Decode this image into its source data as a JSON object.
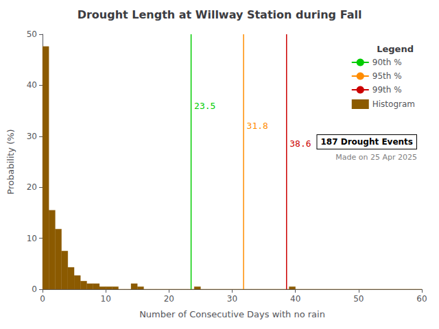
{
  "chart_data": {
    "type": "histogram",
    "title": "Drought Length at Willway Station during Fall",
    "x_label": "Number of Consecutive Days with no rain",
    "y_label": "Probability (%)",
    "bins": [
      0,
      1,
      2,
      3,
      4,
      5,
      6,
      7,
      8,
      9,
      10,
      11,
      12,
      13,
      14,
      15,
      16,
      17,
      18,
      19,
      20,
      21,
      22,
      23,
      24,
      25,
      26,
      27,
      28,
      29,
      30,
      31,
      32,
      33,
      34,
      35,
      36,
      37,
      38,
      39,
      40,
      41,
      42,
      43,
      44,
      45,
      46,
      47,
      48,
      49,
      50,
      51,
      52,
      53,
      54,
      55,
      56,
      57,
      58,
      59,
      60
    ],
    "values": [
      47.6,
      15.5,
      11.8,
      7.5,
      4.3,
      2.7,
      1.6,
      1.1,
      1.1,
      0.5,
      0.5,
      0.5,
      0.0,
      0.0,
      1.1,
      0.5,
      0.0,
      0.0,
      0.0,
      0.0,
      0.0,
      0.0,
      0.0,
      0.0,
      0.5,
      0.0,
      0.0,
      0.0,
      0.0,
      0.0,
      0.0,
      0.0,
      0.0,
      0.0,
      0.0,
      0.0,
      0.0,
      0.0,
      0.0,
      0.5,
      0.0,
      0.0,
      0.0,
      0.0,
      0.0,
      0.0,
      0.0,
      0.0,
      0.0,
      0.0,
      0.0,
      0.0,
      0.0,
      0.0,
      0.0,
      0.0,
      0.0,
      0.0,
      0.0,
      0.0
    ],
    "name": "Histogram",
    "color": "#8B5A00",
    "xlim": [
      0,
      60
    ],
    "ylim": [
      0,
      50
    ],
    "xticks": [
      0,
      10,
      20,
      30,
      40,
      50,
      60
    ],
    "yticks": [
      0,
      10,
      20,
      30,
      40,
      50
    ],
    "grid": false,
    "legend": "upper right",
    "legend_title": "Legend",
    "vlines": [
      {
        "name": "90th %",
        "x": 23.5,
        "color": "#00cc00",
        "label_y": 36
      },
      {
        "name": "95th %",
        "x": 31.8,
        "color": "#ff8c00",
        "label_y": 32
      },
      {
        "name": "99th %",
        "x": 38.6,
        "color": "#cc0000",
        "label_y": 28.5
      }
    ],
    "annotations": [
      {
        "text": "187 Drought Events"
      },
      {
        "text": "Made on 25 Apr 2025"
      }
    ]
  }
}
